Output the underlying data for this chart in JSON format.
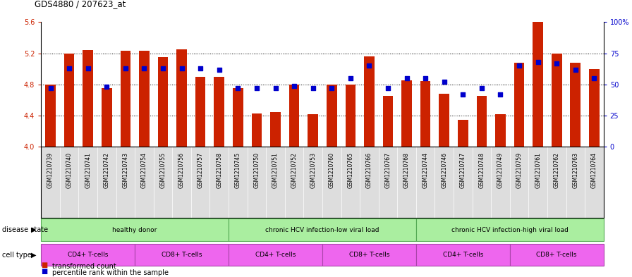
{
  "title": "GDS4880 / 207623_at",
  "samples": [
    "GSM1210739",
    "GSM1210740",
    "GSM1210741",
    "GSM1210742",
    "GSM1210743",
    "GSM1210754",
    "GSM1210755",
    "GSM1210756",
    "GSM1210757",
    "GSM1210758",
    "GSM1210745",
    "GSM1210750",
    "GSM1210751",
    "GSM1210752",
    "GSM1210753",
    "GSM1210760",
    "GSM1210765",
    "GSM1210766",
    "GSM1210767",
    "GSM1210768",
    "GSM1210744",
    "GSM1210746",
    "GSM1210747",
    "GSM1210748",
    "GSM1210749",
    "GSM1210759",
    "GSM1210761",
    "GSM1210762",
    "GSM1210763",
    "GSM1210764"
  ],
  "bar_values": [
    4.8,
    5.2,
    5.24,
    4.75,
    5.23,
    5.23,
    5.15,
    5.25,
    4.9,
    4.9,
    4.75,
    4.43,
    4.45,
    4.8,
    4.42,
    4.8,
    4.8,
    5.16,
    4.65,
    4.85,
    4.84,
    4.68,
    4.35,
    4.65,
    4.42,
    5.08,
    5.6,
    5.2,
    5.08,
    5.0
  ],
  "percentile_values": [
    47,
    63,
    63,
    48,
    63,
    63,
    63,
    63,
    63,
    62,
    47,
    47,
    47,
    49,
    47,
    47,
    55,
    65,
    47,
    55,
    55,
    52,
    42,
    47,
    42,
    65,
    68,
    67,
    62,
    55
  ],
  "y_min": 4.0,
  "y_max": 5.6,
  "y_ticks": [
    4.0,
    4.4,
    4.8,
    5.2,
    5.6
  ],
  "right_y_ticks": [
    0,
    25,
    50,
    75,
    100
  ],
  "bar_color": "#cc2200",
  "dot_color": "#0000cc",
  "bar_base": 4.0,
  "bg_color": "#ffffff",
  "plot_bg": "#ffffff",
  "grid_lines": [
    4.4,
    4.8,
    5.2
  ],
  "disease_state_label": "disease state",
  "cell_type_label": "cell type",
  "ds_groups": [
    {
      "label": "healthy donor",
      "start": 0,
      "end": 10,
      "color": "#aaeea0"
    },
    {
      "label": "chronic HCV infection-low viral load",
      "start": 10,
      "end": 20,
      "color": "#aaeea0"
    },
    {
      "label": "chronic HCV infection-high viral load",
      "start": 20,
      "end": 30,
      "color": "#aaeea0"
    }
  ],
  "ct_groups": [
    {
      "label": "CD4+ T-cells",
      "start": 0,
      "end": 5,
      "color": "#ee66ee"
    },
    {
      "label": "CD8+ T-cells",
      "start": 5,
      "end": 10,
      "color": "#ee66ee"
    },
    {
      "label": "CD4+ T-cells",
      "start": 10,
      "end": 15,
      "color": "#ee66ee"
    },
    {
      "label": "CD8+ T-cells",
      "start": 15,
      "end": 20,
      "color": "#ee66ee"
    },
    {
      "label": "CD4+ T-cells",
      "start": 20,
      "end": 25,
      "color": "#ee66ee"
    },
    {
      "label": "CD8+ T-cells",
      "start": 25,
      "end": 30,
      "color": "#ee66ee"
    }
  ],
  "xtick_bg": "#dddddd",
  "legend_items": [
    {
      "label": "transformed count",
      "color": "#cc2200"
    },
    {
      "label": "percentile rank within the sample",
      "color": "#0000cc"
    }
  ]
}
